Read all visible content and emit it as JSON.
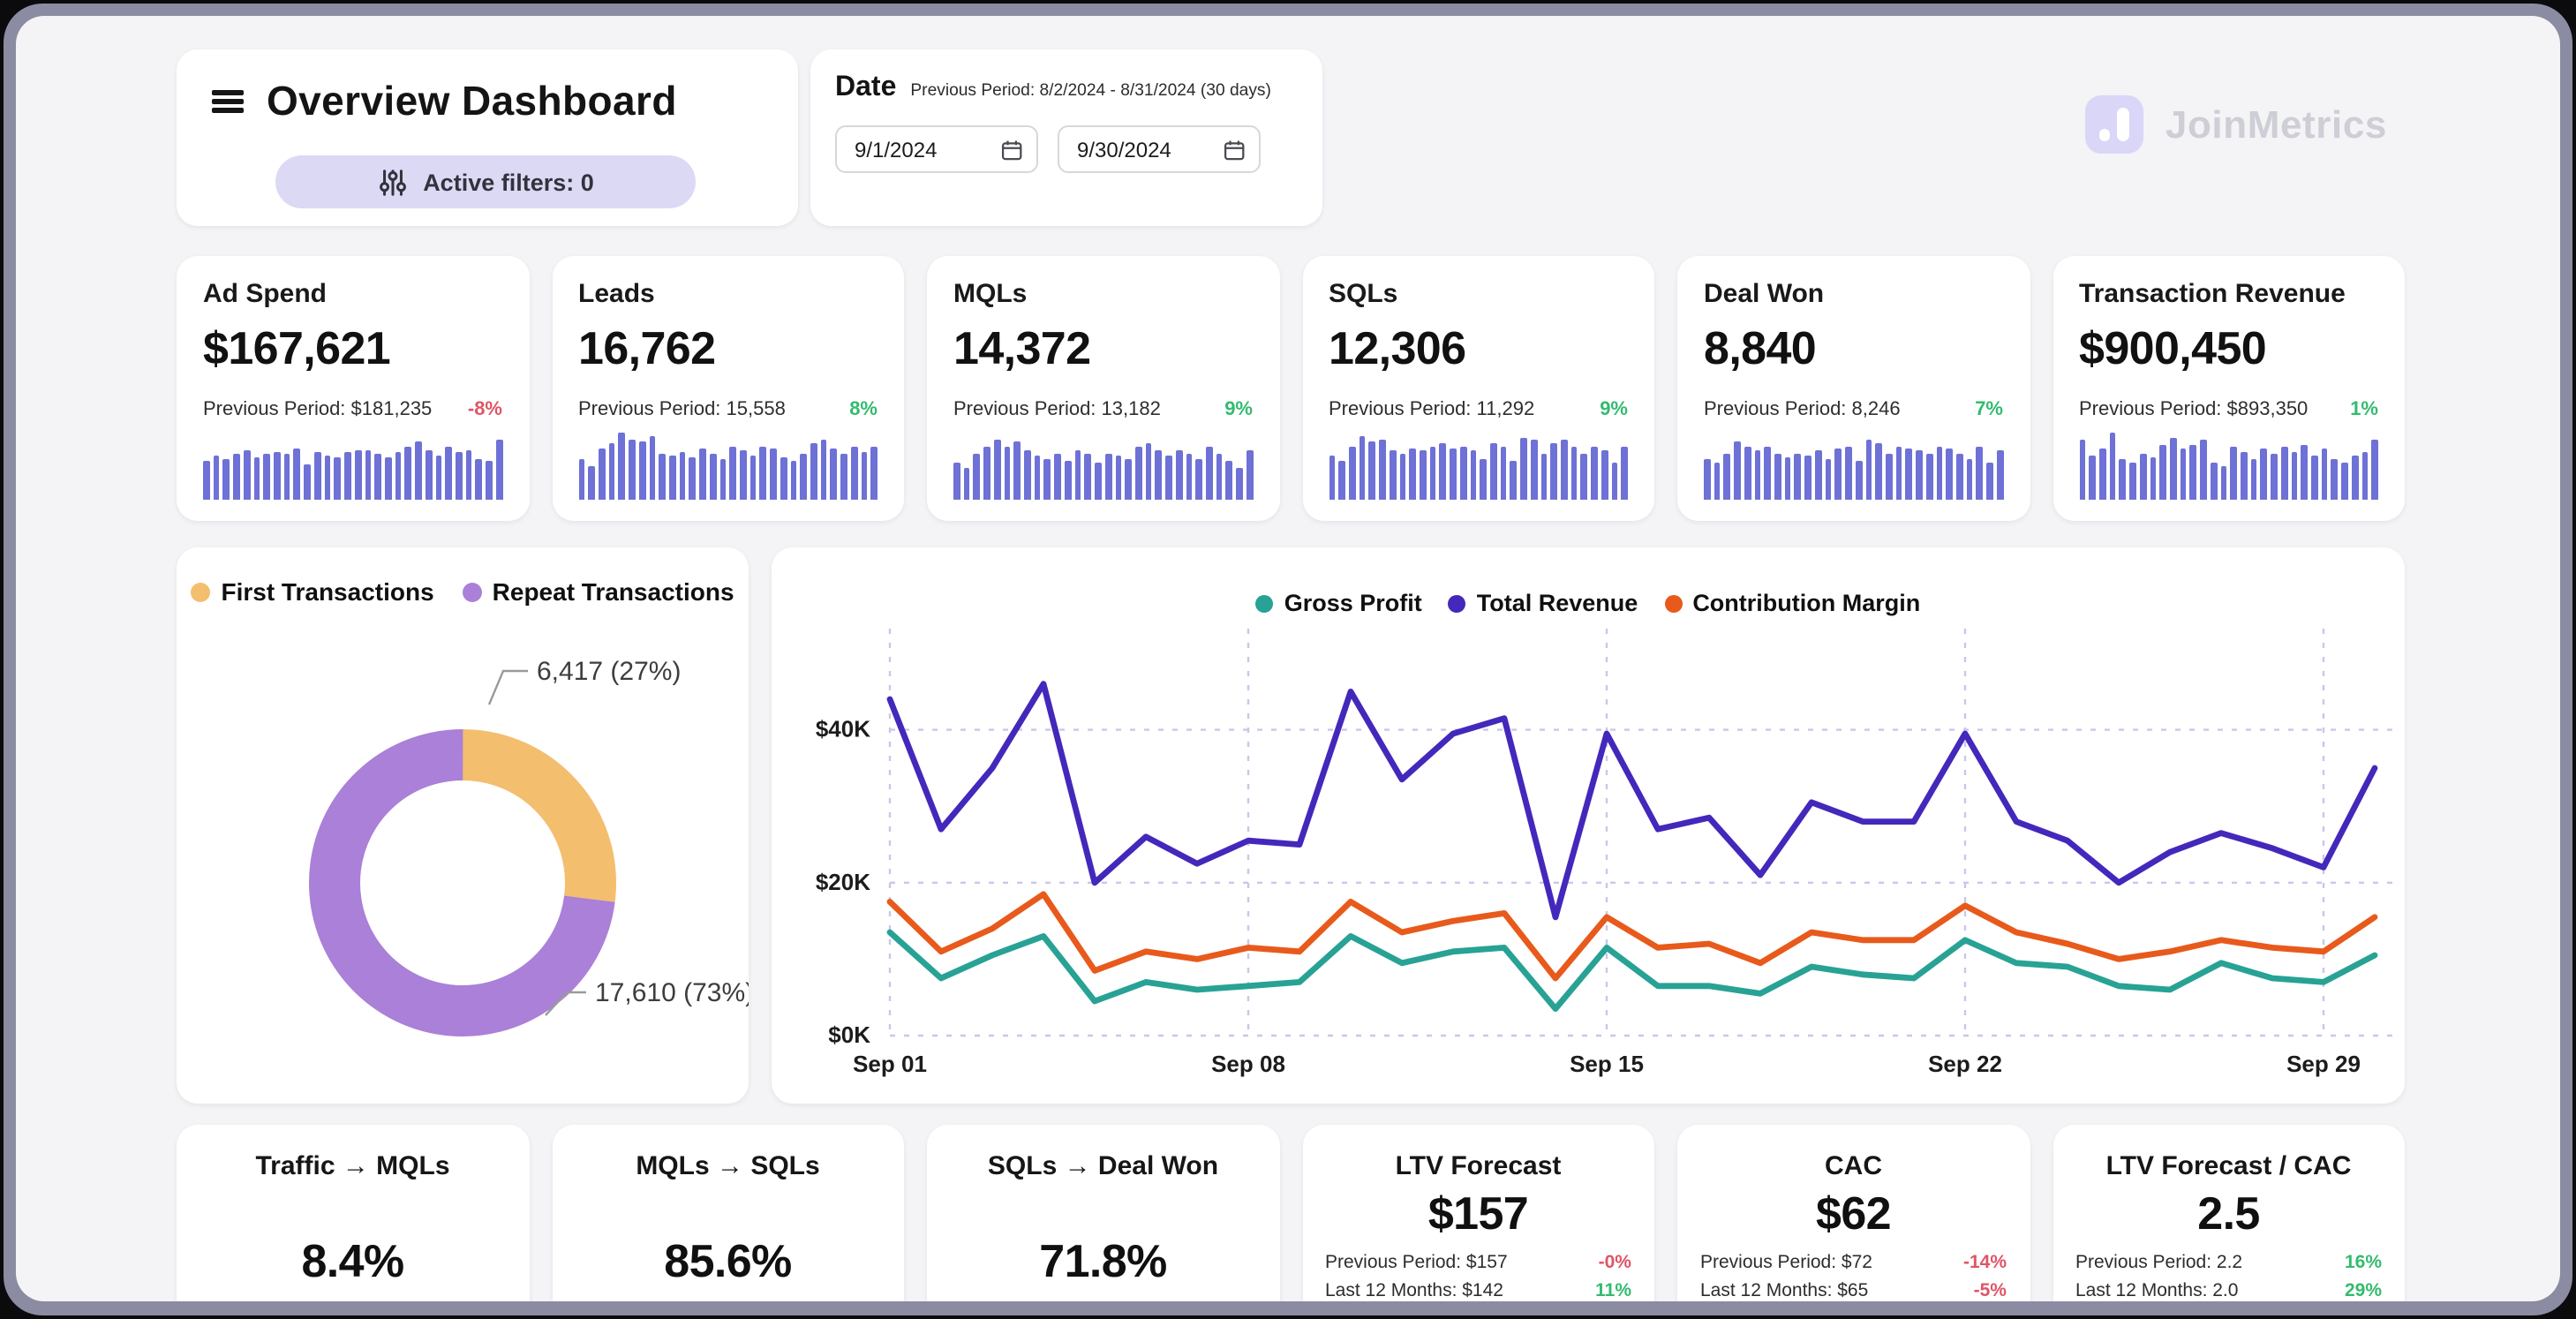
{
  "colors": {
    "frame": "#8b8ca2",
    "page_bg": "#f4f4f6",
    "bar": "#6e71d5",
    "red": "#e05566",
    "green": "#33bb6e",
    "pill_bg": "#dcd9f5",
    "pill_text": "#33323d",
    "logo_bg": "#d9d6f8",
    "logo_text": "#cdced6",
    "grid": "#c6c8ec",
    "callout_line": "#9a9a9a",
    "callout_text": "#3d3d3d"
  },
  "header": {
    "title": "Overview Dashboard",
    "active_filters_label": "Active filters: 0",
    "date": {
      "label": "Date",
      "previous_period_note": "Previous Period: 8/2/2024 - 8/31/2024 (30 days)",
      "start_value": "9/1/2024",
      "end_value": "9/30/2024"
    },
    "logo_text": "JoinMetrics"
  },
  "kpi_cards": [
    {
      "title": "Ad Spend",
      "value": "$167,621",
      "previous_label": "Previous Period: $181,235",
      "delta": "-8%",
      "delta_color": "#e05566",
      "spark": [
        55,
        62,
        58,
        64,
        70,
        60,
        66,
        68,
        66,
        73,
        50,
        68,
        63,
        60,
        67,
        71,
        69,
        64,
        60,
        67,
        74,
        82,
        70,
        63,
        74,
        68,
        71,
        58,
        55,
        86
      ]
    },
    {
      "title": "Leads",
      "value": "16,762",
      "previous_label": "Previous Period: 15,558",
      "delta": "8%",
      "delta_color": "#33bb6e",
      "spark": [
        58,
        48,
        72,
        80,
        96,
        86,
        82,
        90,
        66,
        62,
        68,
        60,
        72,
        66,
        58,
        74,
        70,
        62,
        76,
        72,
        60,
        56,
        66,
        80,
        84,
        72,
        66,
        74,
        68,
        76
      ]
    },
    {
      "title": "MQLs",
      "value": "14,372",
      "previous_label": "Previous Period: 13,182",
      "delta": "9%",
      "delta_color": "#33bb6e",
      "spark": [
        52,
        45,
        64,
        74,
        86,
        76,
        82,
        70,
        62,
        58,
        64,
        55,
        70,
        64,
        52,
        66,
        62,
        58,
        74,
        80,
        70,
        62,
        70,
        66,
        58,
        74,
        64,
        55,
        45,
        70
      ]
    },
    {
      "title": "SQLs",
      "value": "12,306",
      "previous_label": "Previous Period: 11,292",
      "delta": "9%",
      "delta_color": "#33bb6e",
      "spark": [
        62,
        54,
        76,
        90,
        82,
        86,
        70,
        66,
        72,
        70,
        74,
        80,
        72,
        76,
        70,
        58,
        80,
        74,
        55,
        88,
        84,
        64,
        80,
        84,
        74,
        66,
        76,
        70,
        52,
        74
      ]
    },
    {
      "title": "Deal Won",
      "value": "8,840",
      "previous_label": "Previous Period: 8,246",
      "delta": "7%",
      "delta_color": "#33bb6e",
      "spark": [
        58,
        52,
        66,
        82,
        74,
        70,
        76,
        64,
        60,
        66,
        62,
        70,
        58,
        72,
        74,
        55,
        86,
        80,
        64,
        74,
        72,
        70,
        64,
        76,
        72,
        66,
        58,
        74,
        52,
        70
      ]
    },
    {
      "title": "Transaction Revenue",
      "value": "$900,450",
      "previous_label": "Previous Period: $893,350",
      "delta": "1%",
      "delta_color": "#33bb6e",
      "spark": [
        86,
        62,
        72,
        94,
        58,
        52,
        66,
        60,
        78,
        88,
        72,
        78,
        86,
        52,
        48,
        76,
        68,
        58,
        72,
        66,
        74,
        68,
        78,
        62,
        72,
        58,
        52,
        62,
        68,
        84
      ]
    }
  ],
  "chart_data": [
    {
      "type": "pie",
      "subtype": "donut",
      "legend_position": "top",
      "segments": [
        {
          "label": "First Transactions",
          "value": 6417,
          "pct": 27,
          "color": "#f4be6f",
          "callout": "6,417 (27%)"
        },
        {
          "label": "Repeat Transactions",
          "value": 17610,
          "pct": 73,
          "color": "#aa80d8",
          "callout": "17,610 (73%)"
        }
      ]
    },
    {
      "type": "line",
      "legend_position": "top",
      "grid": "dashed",
      "ylim": [
        0,
        50
      ],
      "y_ticks": [
        {
          "value": 0,
          "label": "$0K"
        },
        {
          "value": 20,
          "label": "$20K"
        },
        {
          "value": 40,
          "label": "$40K"
        }
      ],
      "x_days": 30,
      "x_ticks": [
        {
          "day": 1,
          "label": "Sep 01"
        },
        {
          "day": 8,
          "label": "Sep 08"
        },
        {
          "day": 15,
          "label": "Sep 15"
        },
        {
          "day": 22,
          "label": "Sep 22"
        },
        {
          "day": 29,
          "label": "Sep 29"
        }
      ],
      "series": [
        {
          "name": "Gross Profit",
          "color": "#28a295",
          "values": [
            13.5,
            7.5,
            10.5,
            13,
            4.5,
            7,
            6,
            6.5,
            7,
            13,
            9.5,
            11,
            11.5,
            3.5,
            11.5,
            6.5,
            6.5,
            5.5,
            9,
            8,
            7.5,
            12.5,
            9.5,
            9,
            6.5,
            6,
            9.5,
            7.5,
            7,
            10.5
          ]
        },
        {
          "name": "Total Revenue",
          "color": "#4428bb",
          "values": [
            44,
            27,
            35,
            46,
            20,
            26,
            22.5,
            25.5,
            25,
            45,
            33.5,
            39.5,
            41.5,
            15.5,
            39.5,
            27,
            28.5,
            21,
            30.5,
            28,
            28,
            39.5,
            28,
            25.5,
            20,
            24,
            26.5,
            24.5,
            22,
            35
          ]
        },
        {
          "name": "Contribution Margin",
          "color": "#e85a1c",
          "values": [
            17.5,
            11,
            14,
            18.5,
            8.5,
            11,
            10,
            11.5,
            11,
            17.5,
            13.5,
            15,
            16,
            7.5,
            15.5,
            11.5,
            12,
            9.5,
            13.5,
            12.5,
            12.5,
            17,
            13.5,
            12,
            10,
            11,
            12.5,
            11.5,
            11,
            15.5
          ]
        }
      ]
    }
  ],
  "funnel_cards": [
    {
      "title": "Traffic → MQLs",
      "value": "8.4%"
    },
    {
      "title": "MQLs → SQLs",
      "value": "85.6%"
    },
    {
      "title": "SQLs → Deal Won",
      "value": "71.8%"
    },
    {
      "title": "LTV Forecast",
      "value": "$157",
      "rows": [
        {
          "label": "Previous Period: $157",
          "delta": "-0%",
          "color": "#e05566"
        },
        {
          "label": "Last 12 Months: $142",
          "delta": "11%",
          "color": "#33bb6e"
        }
      ]
    },
    {
      "title": "CAC",
      "value": "$62",
      "rows": [
        {
          "label": "Previous Period: $72",
          "delta": "-14%",
          "color": "#e05566"
        },
        {
          "label": "Last 12 Months: $65",
          "delta": "-5%",
          "color": "#e05566"
        }
      ]
    },
    {
      "title": "LTV Forecast / CAC",
      "value": "2.5",
      "rows": [
        {
          "label": "Previous Period: 2.2",
          "delta": "16%",
          "color": "#33bb6e"
        },
        {
          "label": "Last 12 Months: 2.0",
          "delta": "29%",
          "color": "#33bb6e"
        }
      ]
    }
  ]
}
